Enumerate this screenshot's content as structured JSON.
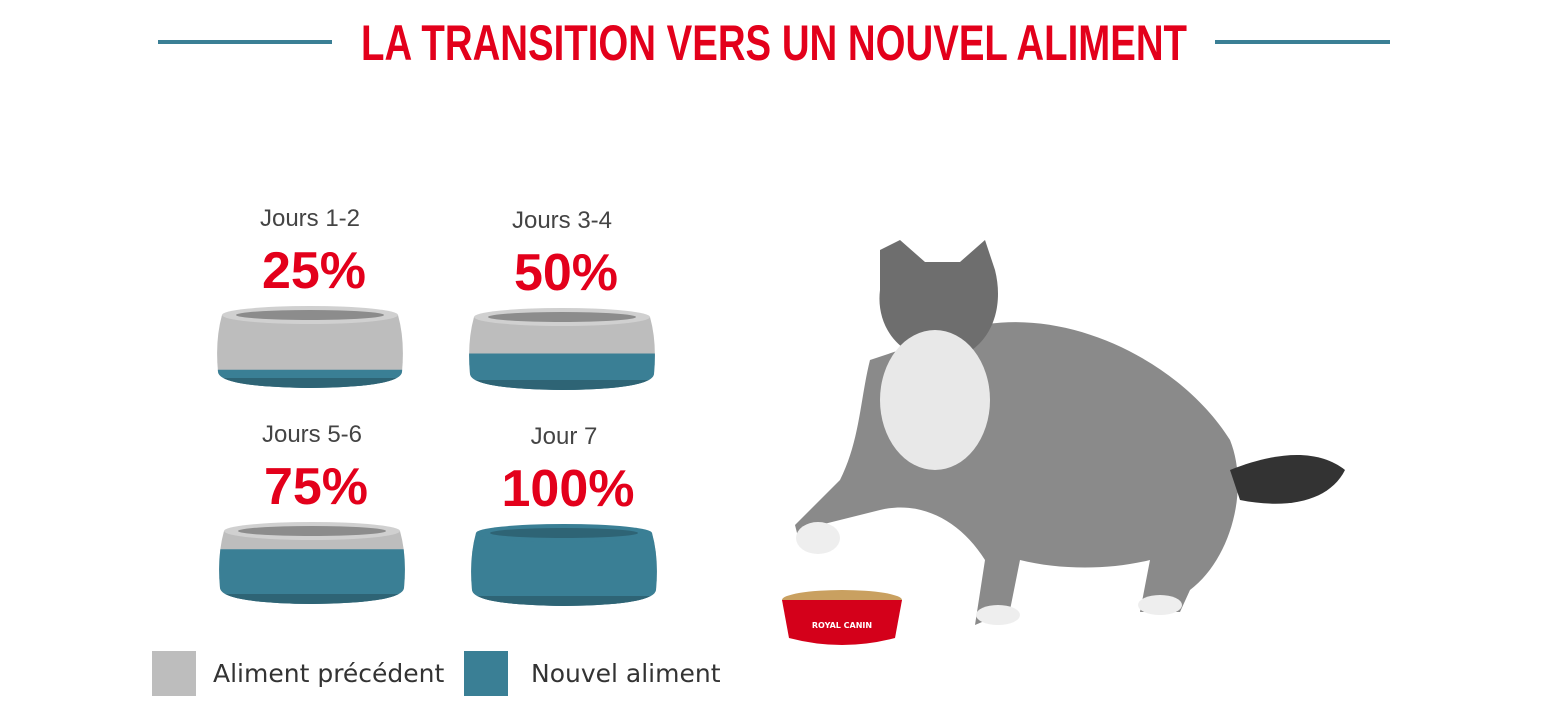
{
  "header": {
    "title": "LA TRANSITION VERS UN NOUVEL ALIMENT"
  },
  "stages": [
    {
      "label": "Jours 1-2",
      "value": 25,
      "value_label": "25%"
    },
    {
      "label": "Jours 3-4",
      "value": 50,
      "value_label": "50%"
    },
    {
      "label": "Jours 5-6",
      "value": 75,
      "value_label": "75%"
    },
    {
      "label": "Jour 7",
      "value": 100,
      "value_label": "100%"
    }
  ],
  "legend": [
    {
      "name": "Aliment précédent",
      "color": "#bdbdbd"
    },
    {
      "name": "Nouvel aliment",
      "color": "#3a7f95"
    }
  ],
  "photo": {
    "bowl_text": "ROYAL CANIN"
  }
}
